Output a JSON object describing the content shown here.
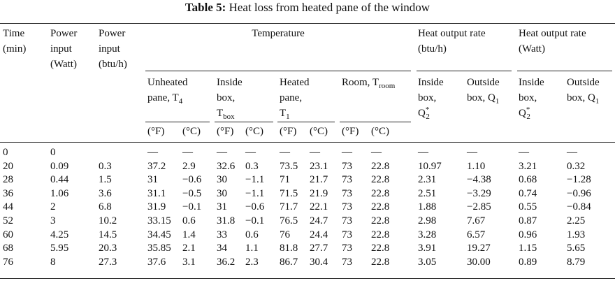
{
  "title": {
    "label": "Table 5:",
    "text": "Heat loss from heated pane of the window"
  },
  "header": {
    "time": [
      "Time",
      "(min)"
    ],
    "power_watt": [
      "Power",
      "input",
      "(Watt)"
    ],
    "power_btu": [
      "Power",
      "input",
      "(btu/h)"
    ],
    "temperature": "Temperature",
    "heat_btu": [
      "Heat output rate",
      "(btu/h)"
    ],
    "heat_watt": [
      "Heat output rate",
      "(Watt)"
    ]
  },
  "subheader": {
    "unheated": [
      "Unheated",
      "pane, T",
      "4"
    ],
    "inside_box": [
      "Inside",
      "box,",
      "T",
      "box"
    ],
    "heated": [
      "Heated",
      "pane,",
      "T",
      "1"
    ],
    "room": [
      "Room, T",
      "room"
    ],
    "inside_btu": [
      "Inside",
      "box,",
      "Q",
      "*",
      "2"
    ],
    "outside_btu": [
      "Outside",
      "box, Q",
      "1"
    ],
    "inside_watt": [
      "Inside",
      "box,",
      "Q",
      "*",
      "2"
    ],
    "outside_watt": [
      "Outside",
      "box, Q",
      "1"
    ]
  },
  "units": [
    "(°F)",
    "(°C)",
    "(°F)",
    "(°C)",
    "(°F)",
    "(°C)",
    "(°F)",
    "(°C)"
  ],
  "rows": [
    [
      "0",
      "0",
      null,
      "—",
      "—",
      "—",
      "—",
      "—",
      "—",
      "—",
      "—",
      "—",
      "—",
      "—",
      "—"
    ],
    [
      "20",
      "0.09",
      "0.3",
      "37.2",
      "2.9",
      "32.6",
      "0.3",
      "73.5",
      "23.1",
      "73",
      "22.8",
      "10.97",
      "1.10",
      "3.21",
      "0.32"
    ],
    [
      "28",
      "0.44",
      "1.5",
      "31",
      "−0.6",
      "30",
      "−1.1",
      "71",
      "21.7",
      "73",
      "22.8",
      "2.31",
      "−4.38",
      "0.68",
      "−1.28"
    ],
    [
      "36",
      "1.06",
      "3.6",
      "31.1",
      "−0.5",
      "30",
      "−1.1",
      "71.5",
      "21.9",
      "73",
      "22.8",
      "2.51",
      "−3.29",
      "0.74",
      "−0.96"
    ],
    [
      "44",
      "2",
      "6.8",
      "31.9",
      "−0.1",
      "31",
      "−0.6",
      "71.7",
      "22.1",
      "73",
      "22.8",
      "1.88",
      "−2.85",
      "0.55",
      "−0.84"
    ],
    [
      "52",
      "3",
      "10.2",
      "33.15",
      "0.6",
      "31.8",
      "−0.1",
      "76.5",
      "24.7",
      "73",
      "22.8",
      "2.98",
      "7.67",
      "0.87",
      "2.25"
    ],
    [
      "60",
      "4.25",
      "14.5",
      "34.45",
      "1.4",
      "33",
      "0.6",
      "76",
      "24.4",
      "73",
      "22.8",
      "3.28",
      "6.57",
      "0.96",
      "1.93"
    ],
    [
      "68",
      "5.95",
      "20.3",
      "35.85",
      "2.1",
      "34",
      "1.1",
      "81.8",
      "27.7",
      "73",
      "22.8",
      "3.91",
      "19.27",
      "1.15",
      "5.65"
    ],
    [
      "76",
      "8",
      "27.3",
      "37.6",
      "3.1",
      "36.2",
      "2.3",
      "86.7",
      "30.4",
      "73",
      "22.8",
      "3.05",
      "30.00",
      "0.89",
      "8.79"
    ]
  ]
}
